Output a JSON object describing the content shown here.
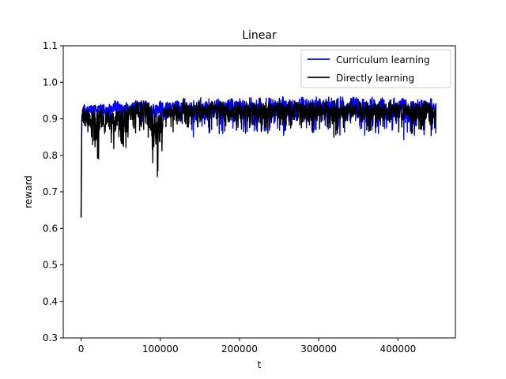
{
  "chart_data": {
    "type": "line",
    "title": "Linear",
    "xlabel": "t",
    "ylabel": "reward",
    "xlim": [
      -22500,
      472500
    ],
    "ylim": [
      0.3,
      1.1
    ],
    "x_ticks": [
      0,
      100000,
      200000,
      300000,
      400000
    ],
    "x_tick_labels": [
      "0",
      "100000",
      "200000",
      "300000",
      "400000"
    ],
    "y_ticks": [
      0.3,
      0.4,
      0.5,
      0.6,
      0.7,
      0.8,
      0.9,
      1.0,
      1.1
    ],
    "y_tick_labels": [
      "0.3",
      "0.4",
      "0.5",
      "0.6",
      "0.7",
      "0.8",
      "0.9",
      "1.0",
      "1.1"
    ],
    "grid": false,
    "legend_position": "upper-right",
    "series": [
      {
        "name": "Curriculum learning",
        "color": "#0000ff",
        "x": [
          0,
          1000,
          2000,
          4000,
          6000,
          10000,
          15000,
          20000,
          25000,
          30000,
          35000,
          40000,
          45000,
          50000,
          55000,
          60000,
          65000,
          70000,
          75000,
          80000,
          85000,
          90000,
          95000,
          100000,
          105000,
          110000,
          115000,
          120000,
          125000,
          130000,
          135000,
          140000,
          145000,
          150000,
          155000,
          160000,
          165000,
          170000,
          175000,
          180000,
          185000,
          190000,
          195000,
          200000,
          205000,
          210000,
          215000,
          220000,
          225000,
          230000,
          235000,
          240000,
          245000,
          250000,
          255000,
          260000,
          265000,
          270000,
          275000,
          280000,
          285000,
          290000,
          295000,
          300000,
          305000,
          310000,
          315000,
          320000,
          325000,
          330000,
          335000,
          340000,
          345000,
          350000,
          355000,
          360000,
          365000,
          370000,
          375000,
          380000,
          385000,
          390000,
          395000,
          400000,
          405000,
          410000,
          415000,
          420000,
          425000,
          430000,
          435000,
          440000,
          445000,
          448000
        ],
        "y_upper": [
          0.64,
          0.94,
          0.93,
          0.94,
          0.93,
          0.94,
          0.94,
          0.94,
          0.94,
          0.94,
          0.94,
          0.95,
          0.95,
          0.94,
          0.95,
          0.94,
          0.95,
          0.95,
          0.95,
          0.95,
          0.95,
          0.94,
          0.94,
          0.95,
          0.94,
          0.95,
          0.95,
          0.95,
          0.95,
          0.96,
          0.95,
          0.95,
          0.95,
          0.96,
          0.95,
          0.96,
          0.95,
          0.95,
          0.96,
          0.95,
          0.95,
          0.96,
          0.95,
          0.96,
          0.95,
          0.96,
          0.96,
          0.95,
          0.96,
          0.95,
          0.96,
          0.96,
          0.95,
          0.96,
          0.96,
          0.95,
          0.96,
          0.95,
          0.96,
          0.96,
          0.96,
          0.95,
          0.96,
          0.96,
          0.95,
          0.96,
          0.96,
          0.95,
          0.96,
          0.96,
          0.95,
          0.96,
          0.96,
          0.96,
          0.96,
          0.95,
          0.96,
          0.96,
          0.95,
          0.96,
          0.95,
          0.96,
          0.96,
          0.95,
          0.96,
          0.96,
          0.95,
          0.95,
          0.96,
          0.95,
          0.95,
          0.96,
          0.95,
          0.95
        ],
        "y_lower": [
          0.63,
          0.87,
          0.88,
          0.89,
          0.88,
          0.89,
          0.88,
          0.89,
          0.89,
          0.88,
          0.89,
          0.89,
          0.89,
          0.88,
          0.89,
          0.88,
          0.89,
          0.89,
          0.88,
          0.89,
          0.85,
          0.88,
          0.87,
          0.88,
          0.88,
          0.88,
          0.87,
          0.87,
          0.86,
          0.86,
          0.84,
          0.85,
          0.84,
          0.86,
          0.84,
          0.85,
          0.87,
          0.84,
          0.86,
          0.85,
          0.87,
          0.86,
          0.85,
          0.87,
          0.86,
          0.85,
          0.87,
          0.86,
          0.85,
          0.86,
          0.87,
          0.85,
          0.86,
          0.86,
          0.85,
          0.87,
          0.86,
          0.85,
          0.86,
          0.86,
          0.85,
          0.86,
          0.84,
          0.86,
          0.85,
          0.86,
          0.84,
          0.86,
          0.85,
          0.86,
          0.84,
          0.87,
          0.86,
          0.85,
          0.84,
          0.86,
          0.85,
          0.86,
          0.84,
          0.86,
          0.85,
          0.86,
          0.84,
          0.86,
          0.85,
          0.83,
          0.86,
          0.85,
          0.86,
          0.84,
          0.86,
          0.85,
          0.86,
          0.86
        ]
      },
      {
        "name": "Directly learning",
        "color": "#000000",
        "x": [
          0,
          1000,
          2000,
          4000,
          6000,
          10000,
          15000,
          20000,
          25000,
          30000,
          35000,
          40000,
          45000,
          50000,
          55000,
          60000,
          65000,
          70000,
          75000,
          80000,
          85000,
          90000,
          95000,
          100000,
          105000,
          110000,
          115000,
          120000,
          125000,
          130000,
          135000,
          140000,
          145000,
          150000,
          155000,
          160000,
          165000,
          170000,
          175000,
          180000,
          185000,
          190000,
          195000,
          200000,
          205000,
          210000,
          215000,
          220000,
          225000,
          230000,
          235000,
          240000,
          245000,
          250000,
          255000,
          260000,
          265000,
          270000,
          275000,
          280000,
          285000,
          290000,
          295000,
          300000,
          305000,
          310000,
          315000,
          320000,
          325000,
          330000,
          335000,
          340000,
          345000,
          350000,
          355000,
          360000,
          365000,
          370000,
          375000,
          380000,
          385000,
          390000,
          395000,
          400000,
          405000,
          410000,
          415000,
          420000,
          425000,
          430000,
          435000,
          440000,
          445000,
          448000
        ],
        "y_upper": [
          0.63,
          0.94,
          0.93,
          0.92,
          0.93,
          0.92,
          0.93,
          0.92,
          0.93,
          0.92,
          0.93,
          0.92,
          0.93,
          0.92,
          0.94,
          0.93,
          0.94,
          0.95,
          0.95,
          0.95,
          0.95,
          0.94,
          0.93,
          0.92,
          0.93,
          0.93,
          0.94,
          0.94,
          0.94,
          0.95,
          0.94,
          0.94,
          0.94,
          0.95,
          0.94,
          0.94,
          0.95,
          0.94,
          0.95,
          0.94,
          0.95,
          0.94,
          0.94,
          0.95,
          0.94,
          0.94,
          0.95,
          0.94,
          0.94,
          0.95,
          0.94,
          0.95,
          0.94,
          0.95,
          0.94,
          0.95,
          0.94,
          0.95,
          0.94,
          0.95,
          0.94,
          0.95,
          0.94,
          0.95,
          0.94,
          0.95,
          0.94,
          0.95,
          0.94,
          0.95,
          0.94,
          0.95,
          0.94,
          0.95,
          0.94,
          0.95,
          0.94,
          0.95,
          0.94,
          0.95,
          0.94,
          0.95,
          0.94,
          0.95,
          0.94,
          0.95,
          0.94,
          0.95,
          0.94,
          0.94,
          0.95,
          0.94,
          0.93,
          0.93
        ],
        "y_lower": [
          0.63,
          0.86,
          0.85,
          0.83,
          0.85,
          0.82,
          0.83,
          0.78,
          0.8,
          0.82,
          0.84,
          0.79,
          0.81,
          0.78,
          0.8,
          0.85,
          0.86,
          0.86,
          0.87,
          0.86,
          0.84,
          0.73,
          0.74,
          0.73,
          0.86,
          0.87,
          0.86,
          0.87,
          0.86,
          0.87,
          0.86,
          0.87,
          0.86,
          0.86,
          0.87,
          0.86,
          0.87,
          0.86,
          0.87,
          0.86,
          0.87,
          0.86,
          0.86,
          0.87,
          0.86,
          0.85,
          0.87,
          0.86,
          0.85,
          0.86,
          0.86,
          0.85,
          0.86,
          0.86,
          0.85,
          0.86,
          0.86,
          0.85,
          0.86,
          0.86,
          0.85,
          0.86,
          0.86,
          0.85,
          0.86,
          0.86,
          0.85,
          0.84,
          0.86,
          0.85,
          0.86,
          0.84,
          0.86,
          0.85,
          0.86,
          0.84,
          0.86,
          0.85,
          0.86,
          0.84,
          0.86,
          0.85,
          0.86,
          0.84,
          0.86,
          0.85,
          0.86,
          0.84,
          0.86,
          0.85,
          0.86,
          0.84,
          0.85,
          0.86
        ]
      }
    ]
  }
}
